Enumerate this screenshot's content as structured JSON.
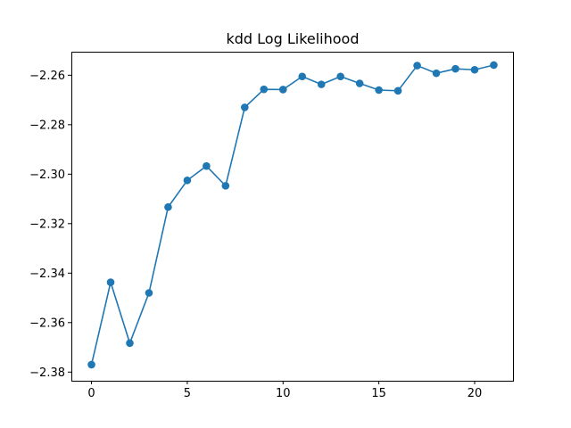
{
  "chart_data": {
    "type": "line",
    "title": "kdd Log Likelihood",
    "xlabel": "",
    "ylabel": "",
    "xlim": [
      -1.05,
      22.05
    ],
    "ylim": [
      -2.3835,
      -2.2505
    ],
    "xticks": [
      0,
      5,
      10,
      15,
      20
    ],
    "xtick_labels": [
      "0",
      "5",
      "10",
      "15",
      "20"
    ],
    "yticks": [
      -2.38,
      -2.36,
      -2.34,
      -2.32,
      -2.3,
      -2.28,
      -2.26
    ],
    "ytick_labels": [
      "−2.38",
      "−2.36",
      "−2.34",
      "−2.32",
      "−2.30",
      "−2.28",
      "−2.26"
    ],
    "grid": false,
    "series": [
      {
        "name": "log-likelihood",
        "color": "#1f77b4",
        "marker": "circle",
        "x": [
          0,
          1,
          2,
          3,
          4,
          5,
          6,
          7,
          8,
          9,
          10,
          11,
          12,
          13,
          14,
          15,
          16,
          17,
          18,
          19,
          20,
          21
        ],
        "values": [
          -2.377,
          -2.3437,
          -2.3683,
          -2.348,
          -2.3133,
          -2.3025,
          -2.2967,
          -2.3047,
          -2.273,
          -2.2657,
          -2.2658,
          -2.2605,
          -2.2637,
          -2.2605,
          -2.2633,
          -2.266,
          -2.2663,
          -2.2561,
          -2.2592,
          -2.2574,
          -2.2578,
          -2.2559
        ]
      }
    ]
  }
}
